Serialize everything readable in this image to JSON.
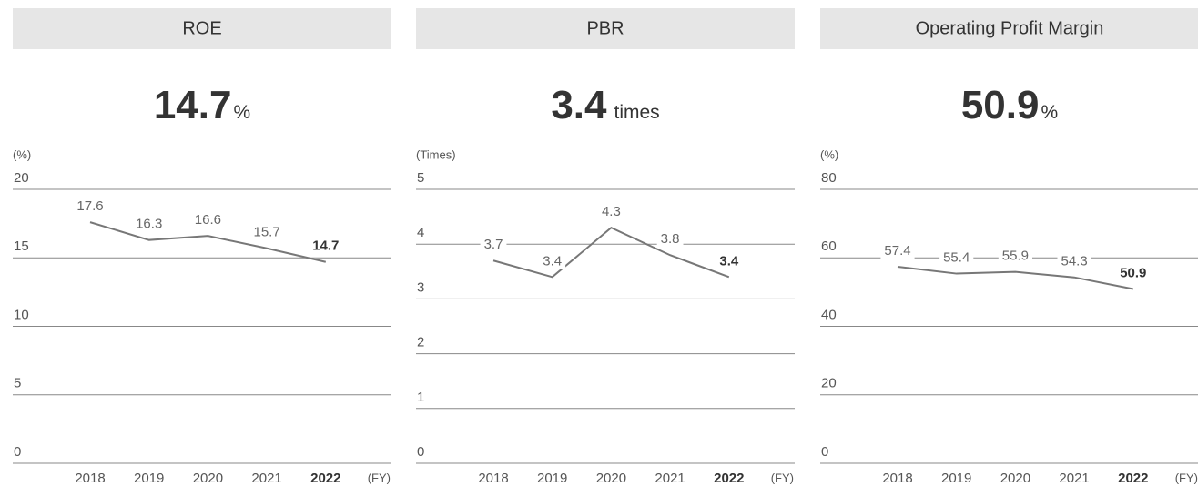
{
  "chart_data": [
    {
      "type": "line",
      "title": "ROE",
      "headline": {
        "value": 14.7,
        "unit": "%"
      },
      "y_label": "(%)",
      "x_label": "(FY)",
      "categories": [
        "2018",
        "2019",
        "2020",
        "2021",
        "2022"
      ],
      "values": [
        17.6,
        16.3,
        16.6,
        15.7,
        14.7
      ],
      "color": "#777777",
      "ylim": [
        0,
        20
      ],
      "yticks": [
        0,
        5,
        10,
        15,
        20
      ],
      "grid": true
    },
    {
      "type": "line",
      "title": "PBR",
      "headline": {
        "value": 3.4,
        "unit": "times"
      },
      "y_label": "(Times)",
      "x_label": "(FY)",
      "categories": [
        "2018",
        "2019",
        "2020",
        "2021",
        "2022"
      ],
      "values": [
        3.7,
        3.4,
        4.3,
        3.8,
        3.4
      ],
      "color": "#777777",
      "ylim": [
        0,
        5
      ],
      "yticks": [
        0,
        1,
        2,
        3,
        4,
        5
      ],
      "grid": true
    },
    {
      "type": "line",
      "title": "Operating Profit Margin",
      "headline": {
        "value": 50.9,
        "unit": "%"
      },
      "y_label": "(%)",
      "x_label": "(FY)",
      "categories": [
        "2018",
        "2019",
        "2020",
        "2021",
        "2022"
      ],
      "values": [
        57.4,
        55.4,
        55.9,
        54.3,
        50.9
      ],
      "color": "#777777",
      "ylim": [
        0,
        80
      ],
      "yticks": [
        0,
        20,
        40,
        60,
        80
      ],
      "grid": true
    }
  ]
}
